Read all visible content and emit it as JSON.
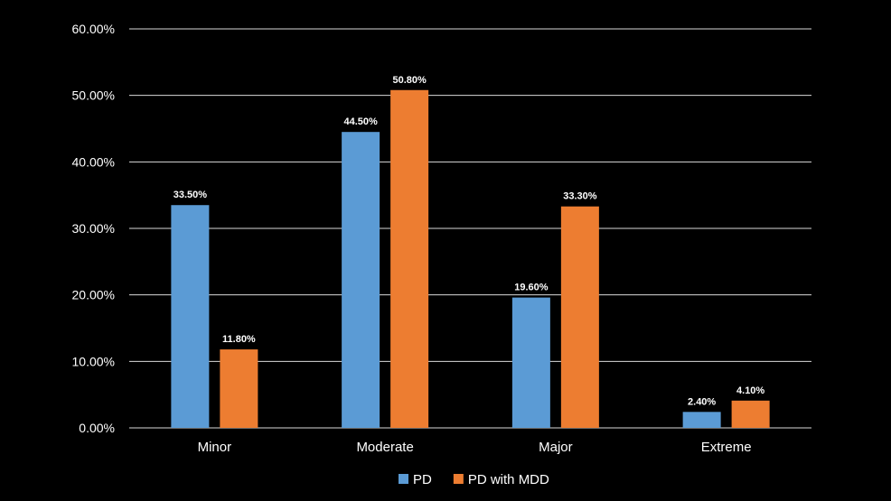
{
  "chart_data": {
    "type": "bar",
    "title": "",
    "xlabel": "",
    "ylabel": "",
    "ylim": [
      0,
      60
    ],
    "yticks": [
      0,
      10,
      20,
      30,
      40,
      50,
      60
    ],
    "ytick_labels": [
      "0.00%",
      "10.00%",
      "20.00%",
      "30.00%",
      "40.00%",
      "50.00%",
      "60.00%"
    ],
    "grid": true,
    "legend_position": "bottom",
    "categories": [
      "Minor",
      "Moderate",
      "Major",
      "Extreme"
    ],
    "series": [
      {
        "name": "PD",
        "color": "#5B9BD5",
        "values": [
          33.5,
          44.5,
          19.6,
          2.4
        ],
        "labels": [
          "33.50%",
          "44.50%",
          "19.60%",
          "2.40%"
        ]
      },
      {
        "name": "PD with MDD",
        "color": "#ED7D31",
        "values": [
          11.8,
          50.8,
          33.3,
          4.1
        ],
        "labels": [
          "11.80%",
          "50.80%",
          "33.30%",
          "4.10%"
        ]
      }
    ]
  }
}
